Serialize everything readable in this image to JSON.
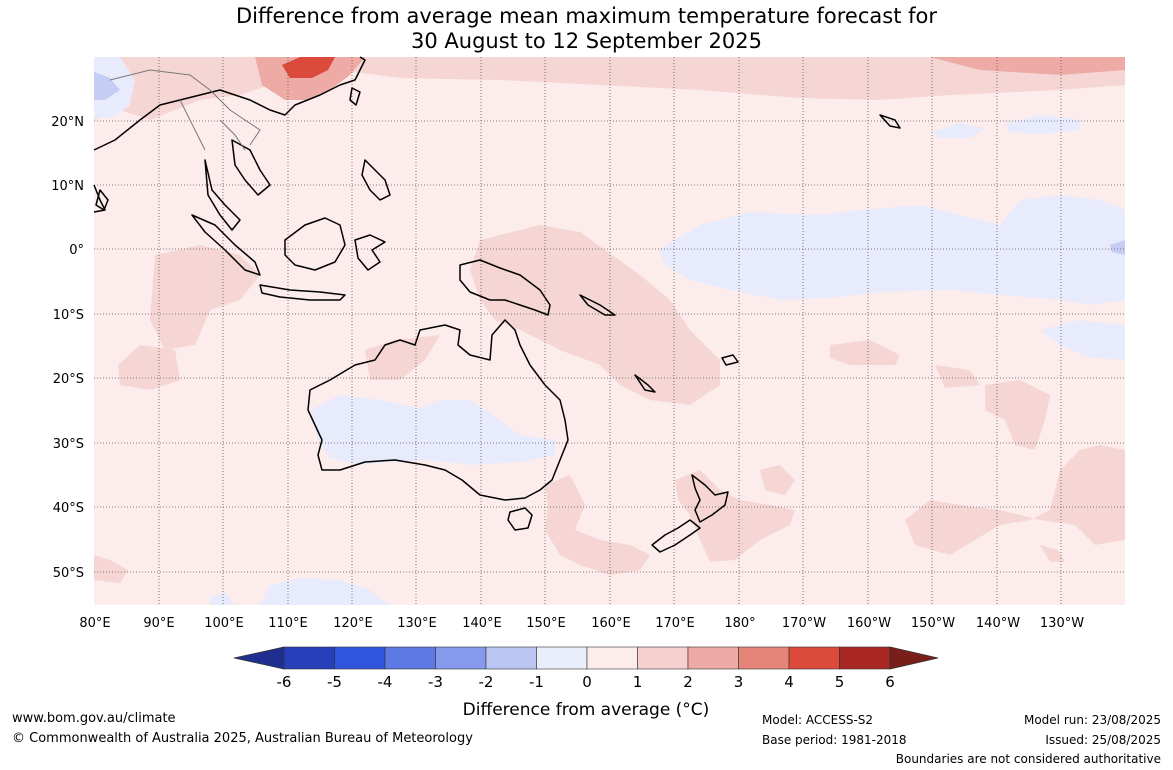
{
  "title": {
    "line1": "Difference from average mean maximum temperature forecast for",
    "line2": "30 August to 12 September 2025"
  },
  "map": {
    "lat_labels": [
      "20°N",
      "10°N",
      "0°",
      "10°S",
      "20°S",
      "30°S",
      "40°S",
      "50°S"
    ],
    "lon_labels": [
      "80°E",
      "90°E",
      "100°E",
      "110°E",
      "120°E",
      "130°E",
      "140°E",
      "150°E",
      "160°E",
      "170°E",
      "180°",
      "170°W",
      "160°W",
      "150°W",
      "140°W",
      "130°W"
    ]
  },
  "colorbar": {
    "ticks": [
      "-6",
      "-5",
      "-4",
      "-3",
      "-2",
      "-1",
      "0",
      "1",
      "2",
      "3",
      "4",
      "5",
      "6"
    ],
    "colors": [
      "#1f2f8f",
      "#2540b8",
      "#2f55de",
      "#5d79e6",
      "#8699ec",
      "#bcc6f4",
      "#eaeefb",
      "#fdecec",
      "#f6cfcf",
      "#eeaaa5",
      "#e58478",
      "#dc4a3c",
      "#a92823",
      "#7a1e1a"
    ],
    "label": "Difference from average (°C)"
  },
  "footer": {
    "website": "www.bom.gov.au/climate",
    "copyright": "© Commonwealth of Australia 2025, Australian Bureau of Meteorology",
    "model": "Model: ACCESS-S2",
    "base_period": "Base period: 1981-2018",
    "model_run": "Model run: 23/08/2025",
    "issued": "Issued: 25/08/2025",
    "disclaimer": "Boundaries are not considered authoritative"
  }
}
